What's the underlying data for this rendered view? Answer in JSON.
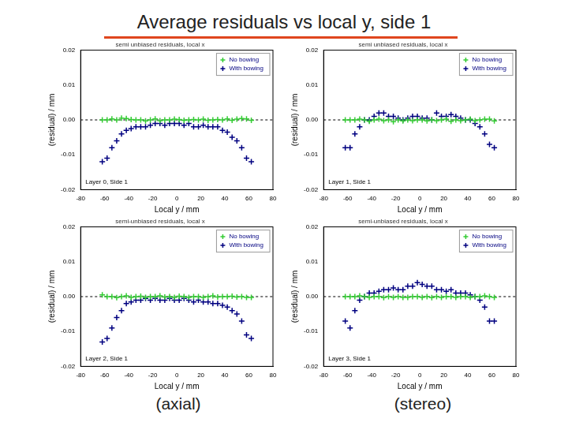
{
  "page": {
    "title": "Average residuals vs local y, side 1",
    "column_labels": [
      "(axial)",
      "(stereo)"
    ]
  },
  "chart_data": [
    {
      "type": "scatter",
      "title": "semi unbiased residuals, local x",
      "x_label": "Local y / mm",
      "y_label": "(residual) / mm",
      "annotation": "Layer 0, Side 1",
      "x": [
        -62,
        -58,
        -54,
        -50,
        -46,
        -42,
        -38,
        -34,
        -30,
        -26,
        -22,
        -18,
        -14,
        -10,
        -6,
        -2,
        2,
        6,
        10,
        14,
        18,
        22,
        26,
        30,
        34,
        38,
        42,
        46,
        50,
        54,
        58,
        62
      ],
      "series": [
        {
          "name": "No bowing",
          "color": "#33cc33",
          "marker": "cross",
          "values": [
            0.0,
            0.0,
            0.0003,
            0.0,
            0.0005,
            0.0004,
            0.0001,
            0.0,
            0.0,
            -0.0003,
            0.0,
            0.0003,
            -0.0002,
            0.0,
            0.0,
            0.0002,
            0.0001,
            -0.0001,
            0.0,
            0.0001,
            0.0,
            0.0002,
            -0.0001,
            0.0,
            0.0001,
            0.0,
            0.0003,
            -0.0001,
            0.0002,
            0.0004,
            0.0003,
            -0.0001
          ]
        },
        {
          "name": "With bowing",
          "color": "#000080",
          "marker": "cross",
          "values": [
            -0.012,
            -0.011,
            -0.008,
            -0.006,
            -0.004,
            -0.003,
            -0.0025,
            -0.002,
            -0.002,
            -0.002,
            -0.0015,
            -0.001,
            -0.001,
            -0.0015,
            -0.001,
            -0.001,
            -0.001,
            -0.0015,
            -0.001,
            -0.002,
            -0.002,
            -0.0015,
            -0.002,
            -0.002,
            -0.002,
            -0.003,
            -0.0035,
            -0.005,
            -0.006,
            -0.008,
            -0.011,
            -0.012
          ]
        }
      ],
      "xlim": [
        -80,
        80
      ],
      "xticks": [
        -80,
        -60,
        -40,
        -20,
        0,
        20,
        40,
        60,
        80
      ],
      "ylim": [
        -0.02,
        0.02
      ],
      "yticks": [
        -0.02,
        -0.01,
        {
          "value": 0,
          "label": "0.00"
        },
        0.01,
        0.02
      ],
      "grid": false,
      "legend": "upper right",
      "zero_line": 0
    },
    {
      "type": "scatter",
      "title": "semi unbiased residuals, local x",
      "x_label": "Local y / mm",
      "y_label": "(residual) / mm",
      "annotation": "Layer 1, Side 1",
      "x": [
        -62,
        -58,
        -54,
        -50,
        -46,
        -42,
        -38,
        -34,
        -30,
        -26,
        -22,
        -18,
        -14,
        -10,
        -6,
        -2,
        2,
        6,
        10,
        14,
        18,
        22,
        26,
        30,
        34,
        38,
        42,
        46,
        50,
        54,
        58,
        62
      ],
      "series": [
        {
          "name": "No bowing",
          "color": "#33cc33",
          "marker": "cross",
          "values": [
            0.0,
            0.0,
            0.0,
            0.0002,
            0.0,
            -0.0004,
            0.0,
            0.0002,
            -0.0002,
            0.0,
            -0.0005,
            0.0,
            -0.0003,
            0.0,
            -0.0002,
            0.0,
            0.0,
            -0.0003,
            0.0,
            -0.0002,
            0.0,
            0.0002,
            -0.0004,
            0.0,
            -0.0002,
            0.0,
            0.0002,
            -0.0002,
            0.0,
            0.0002,
            0.0002,
            -0.0003
          ]
        },
        {
          "name": "With bowing",
          "color": "#000080",
          "marker": "cross",
          "values": [
            -0.008,
            -0.008,
            -0.004,
            -0.002,
            0.0,
            0.0,
            0.001,
            0.002,
            0.002,
            0.001,
            0.001,
            0.0005,
            0.0,
            0.0005,
            0.001,
            0.001,
            0.0005,
            0.0005,
            0.0,
            0.002,
            0.001,
            0.001,
            0.0015,
            0.001,
            0.0005,
            0.0,
            0.0,
            -0.001,
            -0.002,
            -0.004,
            -0.007,
            -0.008
          ]
        }
      ],
      "xlim": [
        -80,
        80
      ],
      "xticks": [
        -80,
        -60,
        -40,
        -20,
        0,
        20,
        40,
        60,
        80
      ],
      "ylim": [
        -0.02,
        0.02
      ],
      "yticks": [
        -0.02,
        -0.01,
        {
          "value": 0,
          "label": "0.00"
        },
        0.01,
        0.02
      ],
      "grid": false,
      "legend": "upper right",
      "zero_line": 0
    },
    {
      "type": "scatter",
      "title": "semi-unbiased residuals, local x",
      "x_label": "Local y / mm",
      "y_label": "(residual) / mm",
      "annotation": "Layer 2, Side 1",
      "x": [
        -62,
        -58,
        -54,
        -50,
        -46,
        -42,
        -38,
        -34,
        -30,
        -26,
        -22,
        -18,
        -14,
        -10,
        -6,
        -2,
        2,
        6,
        10,
        14,
        18,
        22,
        26,
        30,
        34,
        38,
        42,
        46,
        50,
        54,
        58,
        62
      ],
      "series": [
        {
          "name": "No bowing",
          "color": "#33cc33",
          "marker": "cross",
          "values": [
            0.0005,
            0.0,
            0.0,
            -0.0003,
            0.0,
            0.0002,
            -0.0002,
            0.0,
            0.0001,
            -0.0002,
            0.0,
            0.0,
            0.0002,
            -0.0001,
            0.0,
            -0.0002,
            0.0001,
            0.0,
            -0.0002,
            0.0,
            0.0,
            -0.0002,
            0.0,
            0.0002,
            -0.0001,
            0.0,
            0.0,
            0.0001,
            -0.0001,
            0.0,
            -0.0002,
            -0.0002
          ]
        },
        {
          "name": "With bowing",
          "color": "#000080",
          "marker": "cross",
          "values": [
            -0.013,
            -0.012,
            -0.009,
            -0.006,
            -0.004,
            -0.002,
            -0.0015,
            -0.001,
            -0.001,
            -0.0005,
            -0.001,
            -0.0005,
            -0.001,
            -0.001,
            -0.0005,
            -0.001,
            -0.001,
            -0.0005,
            -0.001,
            -0.0015,
            -0.001,
            -0.0015,
            -0.0015,
            -0.002,
            -0.002,
            -0.0025,
            -0.003,
            -0.004,
            -0.005,
            -0.007,
            -0.011,
            -0.012
          ]
        }
      ],
      "xlim": [
        -80,
        80
      ],
      "xticks": [
        -80,
        -60,
        -40,
        -20,
        0,
        20,
        40,
        60,
        80
      ],
      "ylim": [
        -0.02,
        0.02
      ],
      "yticks": [
        -0.02,
        -0.01,
        {
          "value": 0,
          "label": "0.00"
        },
        0.01,
        0.02
      ],
      "grid": false,
      "legend": "upper right",
      "zero_line": 0
    },
    {
      "type": "scatter",
      "title": "semi-unbiased residuals, local x",
      "x_label": "Local y / mm",
      "y_label": "(residual) / mm",
      "annotation": "Layer 3, Side 1",
      "x": [
        -62,
        -58,
        -54,
        -50,
        -46,
        -42,
        -38,
        -34,
        -30,
        -26,
        -22,
        -18,
        -14,
        -10,
        -6,
        -2,
        2,
        6,
        10,
        14,
        18,
        22,
        26,
        30,
        34,
        38,
        42,
        46,
        50,
        54,
        58,
        62
      ],
      "series": [
        {
          "name": "No bowing",
          "color": "#33cc33",
          "marker": "cross",
          "values": [
            0.0,
            0.0,
            0.0,
            0.0002,
            0.0,
            -0.0002,
            0.0,
            0.0,
            -0.0003,
            0.0,
            -0.0002,
            0.0,
            -0.0002,
            -0.0002,
            0.0,
            0.0,
            -0.0002,
            0.0,
            -0.0003,
            0.0,
            -0.0002,
            0.0,
            0.0,
            -0.0002,
            0.0,
            0.0,
            -0.0002,
            0.0,
            0.0,
            0.0002,
            0.0,
            -0.0002
          ]
        },
        {
          "name": "With bowing",
          "color": "#000080",
          "marker": "cross",
          "values": [
            -0.007,
            -0.009,
            -0.004,
            -0.001,
            0.0,
            0.001,
            0.001,
            0.0015,
            0.002,
            0.002,
            0.0025,
            0.002,
            0.002,
            0.003,
            0.003,
            0.004,
            0.0035,
            0.003,
            0.003,
            0.002,
            0.002,
            0.0015,
            0.002,
            0.001,
            0.001,
            0.001,
            0.0005,
            0.0,
            -0.001,
            -0.003,
            -0.007,
            -0.007
          ]
        }
      ],
      "xlim": [
        -80,
        80
      ],
      "xticks": [
        -80,
        -60,
        -40,
        -20,
        0,
        20,
        40,
        60,
        80
      ],
      "ylim": [
        -0.02,
        0.02
      ],
      "yticks": [
        -0.02,
        -0.01,
        {
          "value": 0,
          "label": "0.00"
        },
        0.01,
        0.02
      ],
      "grid": false,
      "legend": "upper right",
      "zero_line": 0
    }
  ]
}
